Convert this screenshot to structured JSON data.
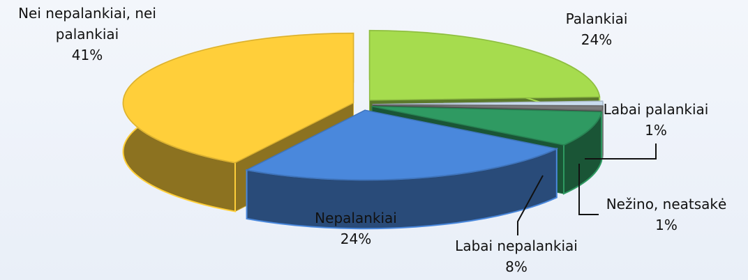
{
  "chart_data": {
    "type": "pie",
    "categories": [
      "Palankiai",
      "Labai palankiai",
      "Nežino, neatsakė",
      "Labai nepalankiai",
      "Nepalankiai",
      "Nei nepalankiai, nei palankiai"
    ],
    "values": [
      24,
      1,
      1,
      8,
      24,
      41
    ],
    "value_labels": [
      "24%",
      "1%",
      "1%",
      "8%",
      "24%",
      "41%"
    ],
    "colors": [
      "#a6dc4e",
      "#c9dcee",
      "#7a7a7a",
      "#2f9a62",
      "#4a88dc",
      "#ffcf3a"
    ]
  }
}
